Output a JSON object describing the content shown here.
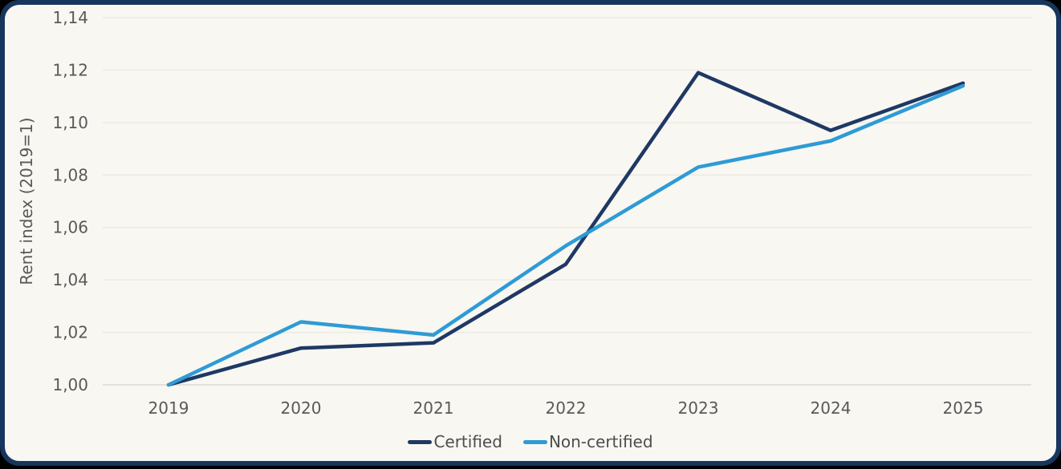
{
  "frame": {
    "background": "#000000",
    "card_background": "#f8f7f2",
    "border_color": "#17365d",
    "gridline_color": "#eceae4",
    "axis_text_color": "#595959"
  },
  "chart_data": {
    "type": "line",
    "title": "",
    "xlabel": "",
    "ylabel": "Rent index (2019=1)",
    "categories": [
      "2019",
      "2020",
      "2021",
      "2022",
      "2023",
      "2024",
      "2025"
    ],
    "series": [
      {
        "name": "Certified",
        "color": "#1f3864",
        "values": [
          1.0,
          1.014,
          1.016,
          1.046,
          1.119,
          1.097,
          1.115
        ]
      },
      {
        "name": "Non-certified",
        "color": "#2e9bd5",
        "values": [
          1.0,
          1.024,
          1.019,
          1.053,
          1.083,
          1.093,
          1.114
        ]
      }
    ],
    "ylim": [
      1.0,
      1.14
    ],
    "ytick_step": 0.02,
    "ytick_labels": [
      "1,00",
      "1,02",
      "1,04",
      "1,06",
      "1,08",
      "1,10",
      "1,12",
      "1,14"
    ],
    "grid": true,
    "legend_position": "bottom"
  }
}
